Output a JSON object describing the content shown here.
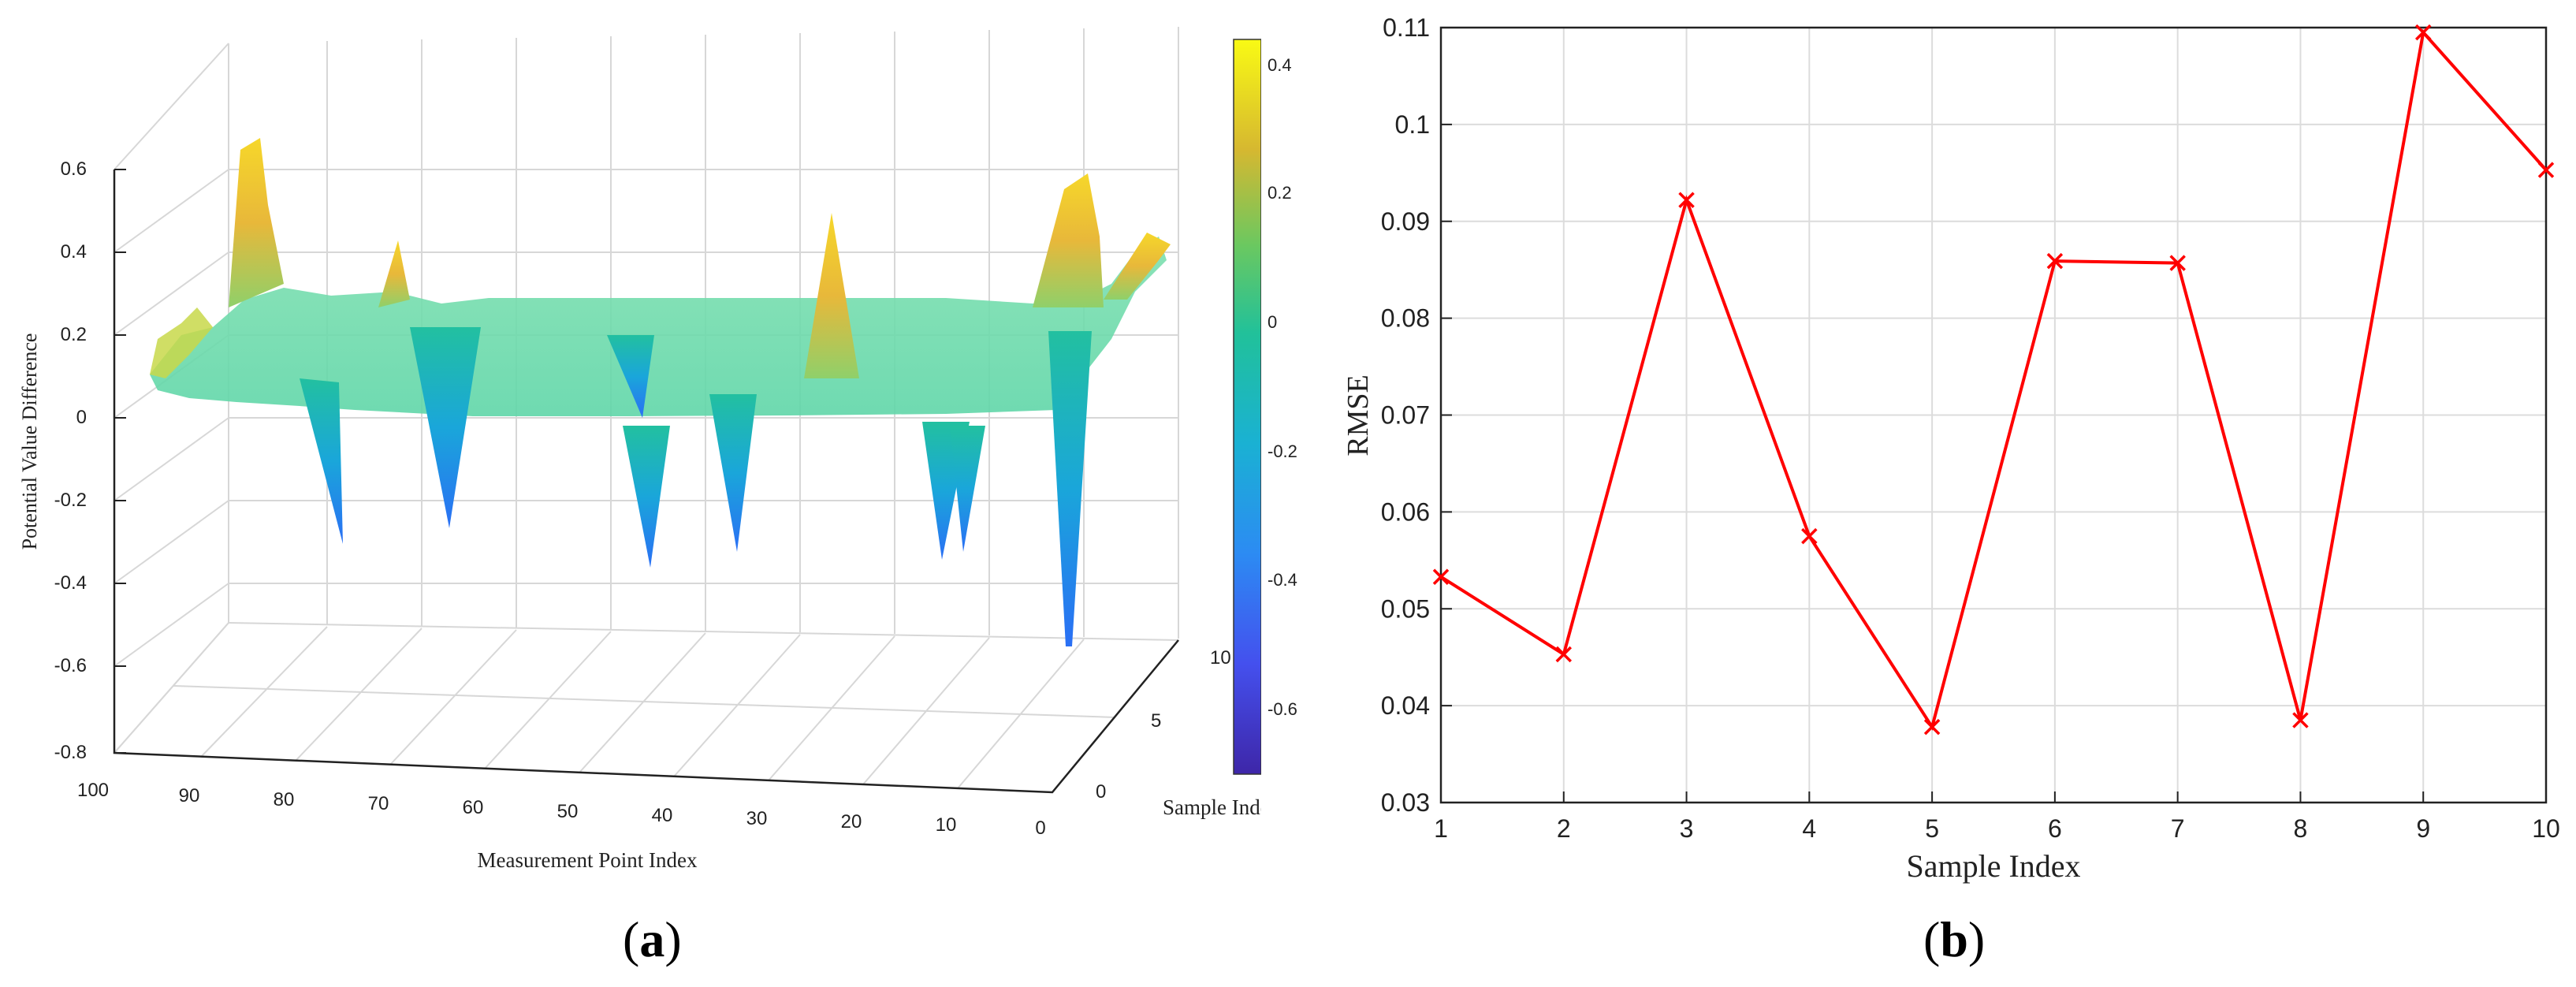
{
  "figure": {
    "panel_a_label": "a",
    "panel_b_label": "b"
  },
  "chart_data": [
    {
      "type": "surface",
      "xlabel": "Measurement Point Index",
      "ylabel": "Sample Index",
      "zlabel": "Potential Value Difference",
      "xlim": [
        0,
        100
      ],
      "ylim": [
        0,
        10
      ],
      "zlim": [
        -0.8,
        0.6
      ],
      "x_ticks": [
        "100",
        "90",
        "80",
        "70",
        "60",
        "50",
        "40",
        "30",
        "20",
        "10",
        "0"
      ],
      "y_ticks": [
        "0",
        "5",
        "10"
      ],
      "z_ticks": [
        "0.6",
        "0.4",
        "0.2",
        "0",
        "-0.2",
        "-0.4",
        "-0.6",
        "-0.8"
      ],
      "colorbar": {
        "ticks": [
          "0.4",
          "0.2",
          "0",
          "-0.2",
          "-0.4",
          "-0.6"
        ],
        "range": [
          -0.72,
          0.44
        ],
        "colormap": "parula"
      },
      "grid": true,
      "features": [
        {
          "measurement_point": 96,
          "value": 0.57
        },
        {
          "measurement_point": 82,
          "value": -0.29
        },
        {
          "measurement_point": 77,
          "value": 0.4
        },
        {
          "measurement_point": 75,
          "value": -0.27
        },
        {
          "measurement_point": 50,
          "value": -0.3
        },
        {
          "measurement_point": 45,
          "value": -0.35
        },
        {
          "measurement_point": 35,
          "value": 0.5
        },
        {
          "measurement_point": 22,
          "value": -0.3
        },
        {
          "measurement_point": 21,
          "value": -0.3
        },
        {
          "measurement_point": 12,
          "value": 0.55
        },
        {
          "measurement_point": 11,
          "value": -0.74
        },
        {
          "measurement_point": 1,
          "value": 0.44
        }
      ]
    },
    {
      "type": "line",
      "xlabel": "Sample Index",
      "ylabel": "RMSE",
      "xlim": [
        1,
        10
      ],
      "ylim": [
        0.03,
        0.11
      ],
      "grid": true,
      "x": [
        1,
        2,
        3,
        4,
        5,
        6,
        7,
        8,
        9,
        10
      ],
      "series": [
        {
          "values": [
            0.0533,
            0.0453,
            0.0922,
            0.0575,
            0.0378,
            0.0859,
            0.0857,
            0.0385,
            0.1095,
            0.0953
          ],
          "color": "#ff0000",
          "marker": "x"
        }
      ],
      "x_ticks": [
        "1",
        "2",
        "3",
        "4",
        "5",
        "6",
        "7",
        "8",
        "9",
        "10"
      ],
      "y_ticks": [
        "0.03",
        "0.04",
        "0.05",
        "0.06",
        "0.07",
        "0.08",
        "0.09",
        "0.1",
        "0.11"
      ]
    }
  ]
}
